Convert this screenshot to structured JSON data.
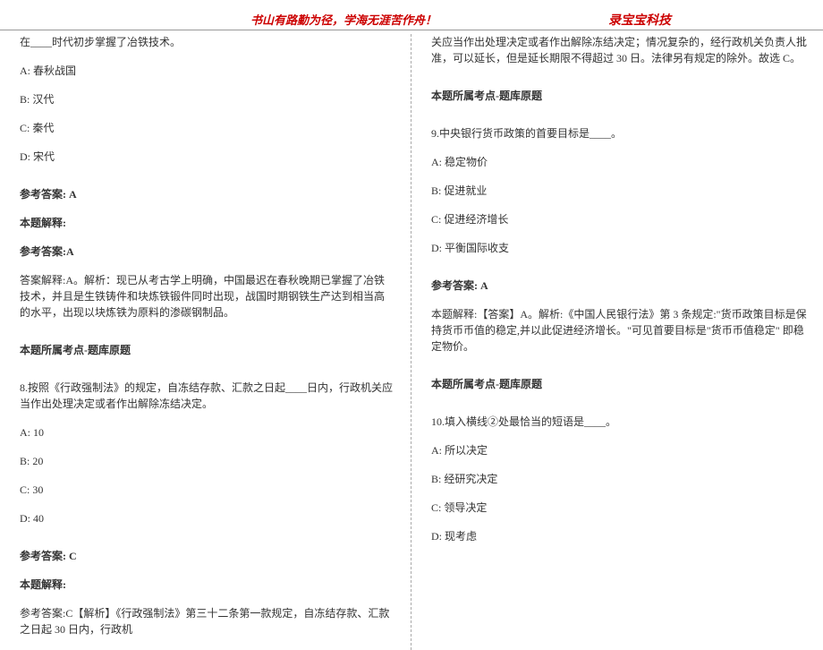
{
  "header": {
    "left_motto": "书山有路勤为径，学海无涯苦作舟！",
    "right_brand": "录宝宝科技"
  },
  "left_col": {
    "q7_stem": "在____时代初步掌握了冶铁技术。",
    "q7_a": "A: 春秋战国",
    "q7_b": "B: 汉代",
    "q7_c": "C: 秦代",
    "q7_d": "D: 宋代",
    "q7_ans_label": "参考答案: A",
    "q7_expl_label": "本题解释:",
    "q7_ans_dup": "参考答案:A",
    "q7_expl": "答案解释:A。解析：现已从考古学上明确，中国最迟在春秋晚期已掌握了冶铁技术，并且是生铁铸件和块炼铁锻件同时出现，战国时期钢铁生产达到相当高的水平，出现以块炼铁为原料的渗碳钢制品。",
    "q7_topic": "本题所属考点-题库原题",
    "q8_stem": "8.按照《行政强制法》的规定，自冻结存款、汇款之日起____日内，行政机关应当作出处理决定或者作出解除冻结决定。",
    "q8_a": "A: 10",
    "q8_b": "B: 20",
    "q8_c": "C: 30",
    "q8_d": "D: 40",
    "q8_ans_label": "参考答案: C",
    "q8_expl_label": "本题解释:",
    "q8_expl": "参考答案:C【解析】《行政强制法》第三十二条第一款规定，自冻结存款、汇款之日起 30 日内，行政机"
  },
  "right_col": {
    "q8_cont": "关应当作出处理决定或者作出解除冻结决定；情况复杂的，经行政机关负责人批准，可以延长，但是延长期限不得超过 30 日。法律另有规定的除外。故选 C。",
    "q8_topic": "本题所属考点-题库原题",
    "q9_stem": "9.中央银行货币政策的首要目标是____。",
    "q9_a": "A: 稳定物价",
    "q9_b": "B: 促进就业",
    "q9_c": "C: 促进经济增长",
    "q9_d": "D: 平衡国际收支",
    "q9_ans_label": "参考答案: A",
    "q9_expl": "本题解释:【答案】A。解析:《中国人民银行法》第 3 条规定:\"货币政策目标是保持货币币值的稳定,并以此促进经济增长。\"可见首要目标是\"货币币值稳定\" 即稳定物价。",
    "q9_topic": "本题所属考点-题库原题",
    "q10_stem": "10.填入横线②处最恰当的短语是____。",
    "q10_a": "A: 所以决定",
    "q10_b": "B: 经研究决定",
    "q10_c": "C: 领导决定",
    "q10_d": "D: 现考虑"
  }
}
